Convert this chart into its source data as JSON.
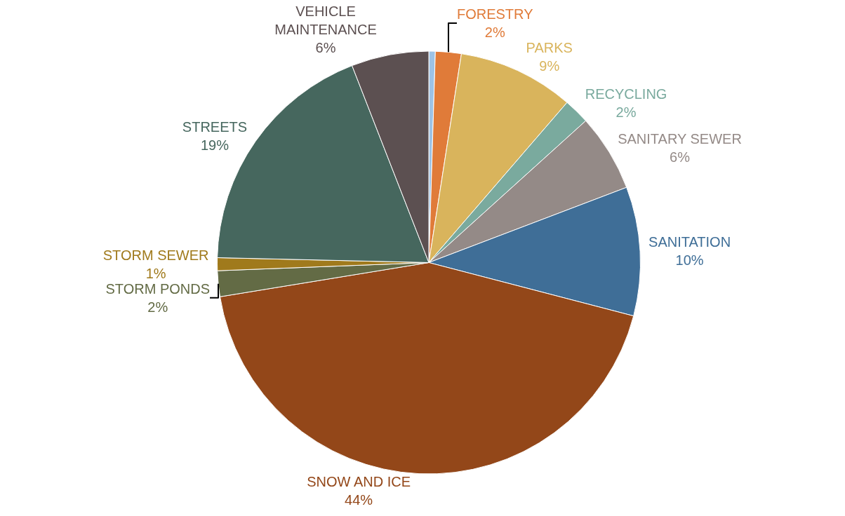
{
  "chart_data": {
    "type": "pie",
    "categories": [
      null,
      "FORESTRY",
      "PARKS",
      "RECYCLING",
      "SANITARY SEWER",
      "SANITATION",
      "SNOW AND ICE",
      "STORM PONDS",
      "STORM SEWER",
      "STREETS",
      "VEHICLE MAINTENANCE"
    ],
    "values": [
      0.5,
      2,
      9,
      2,
      6,
      10,
      44,
      2,
      1,
      19,
      6
    ],
    "value_labels": [
      null,
      "2%",
      "9%",
      "2%",
      "6%",
      "10%",
      "44%",
      "2%",
      "1%",
      "19%",
      "6%"
    ],
    "colors": [
      "#9dc3e6",
      "#e07b39",
      "#d9b45c",
      "#7aaa9e",
      "#948a87",
      "#3f6e97",
      "#934719",
      "#636b45",
      "#a07a1c",
      "#46675e",
      "#5c5051"
    ],
    "legend": false
  }
}
